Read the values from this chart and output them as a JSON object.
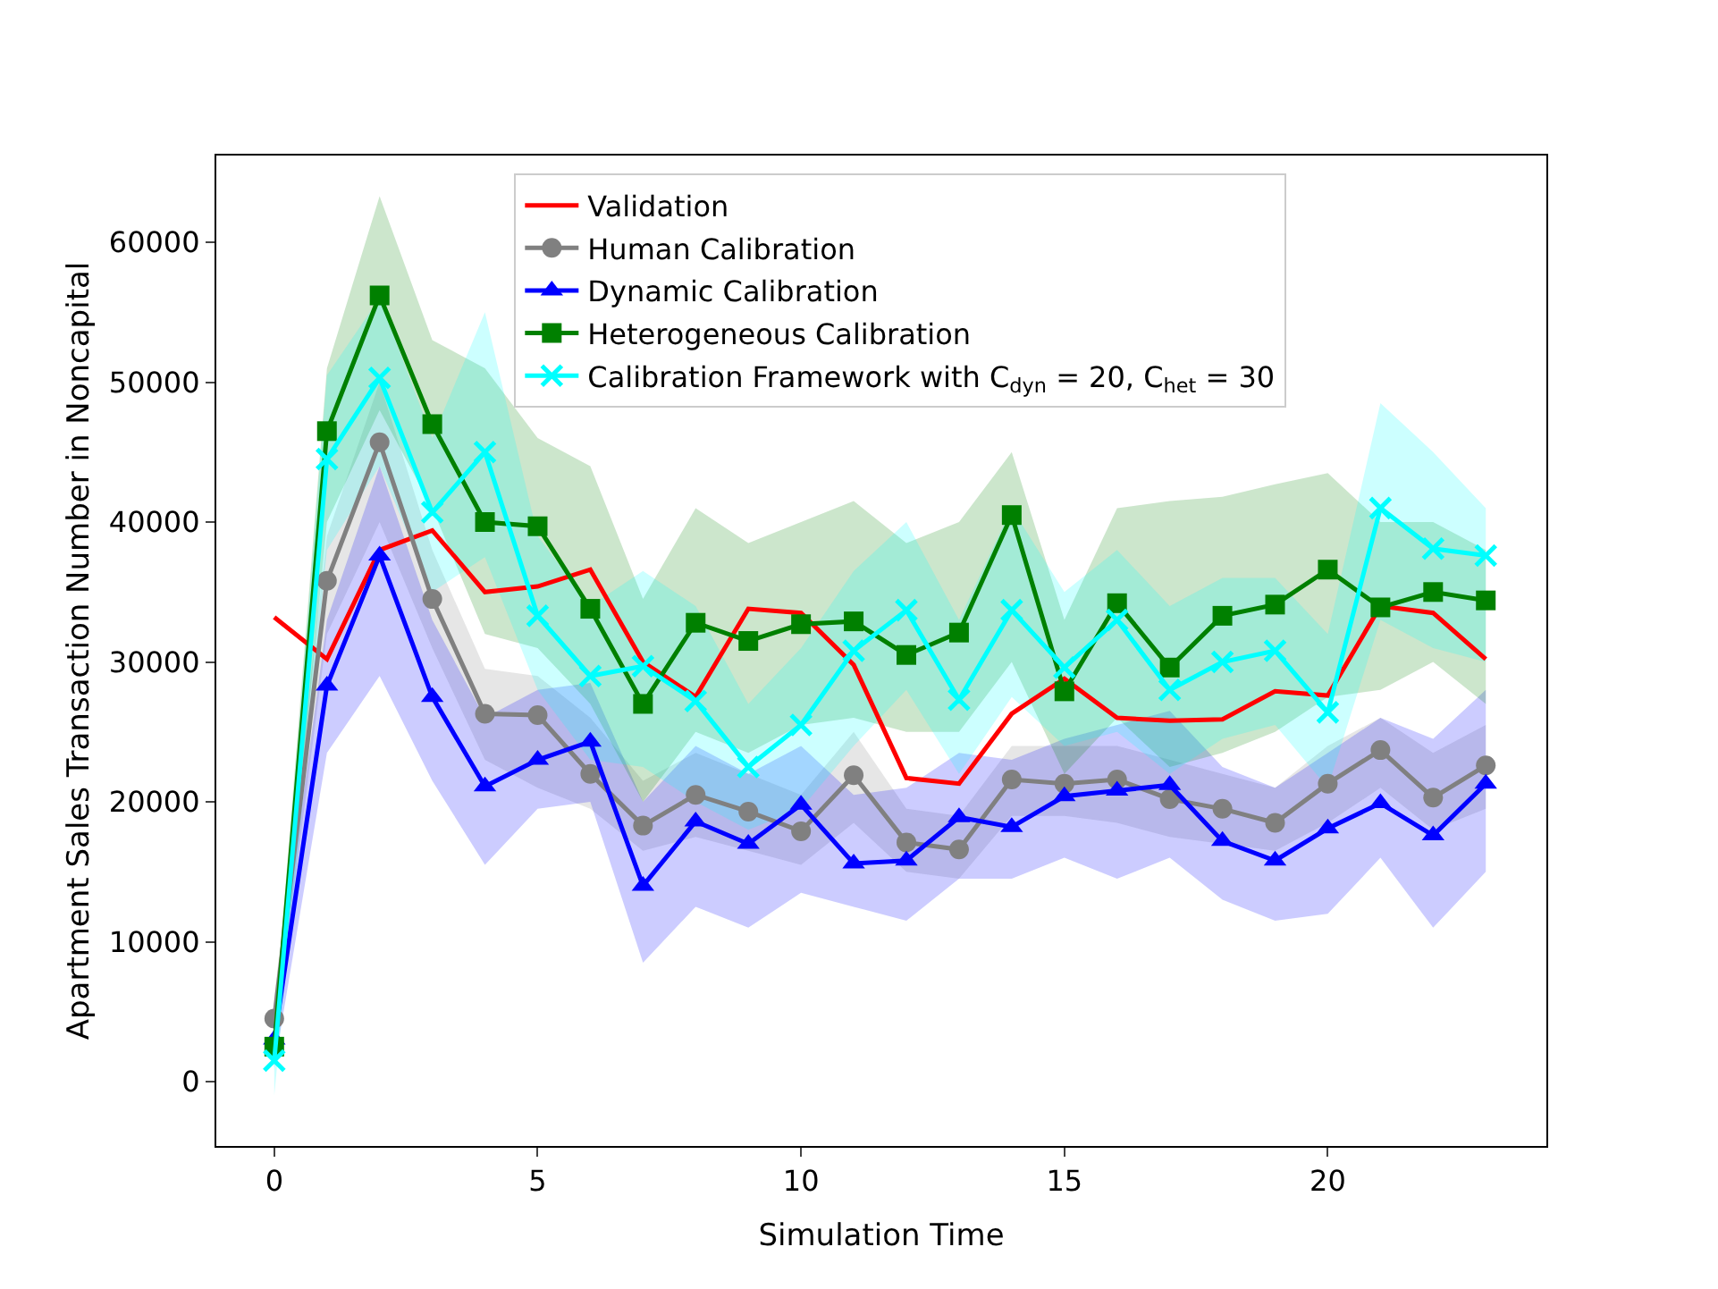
{
  "chart_data": {
    "type": "line",
    "xlabel": "Simulation Time",
    "ylabel": "Apartment Sales Transaction Number in Noncapital",
    "x": [
      0,
      1,
      2,
      3,
      4,
      5,
      6,
      7,
      8,
      9,
      10,
      11,
      12,
      13,
      14,
      15,
      16,
      17,
      18,
      19,
      20,
      21,
      22,
      23
    ],
    "xlim": [
      -1.1,
      24.15
    ],
    "xticks": [
      0,
      5,
      10,
      15,
      20
    ],
    "ylim": [
      -4600,
      66200
    ],
    "yticks": [
      0,
      10000,
      20000,
      30000,
      40000,
      50000,
      60000
    ],
    "legend": "top right",
    "line_style": "solid",
    "series": [
      {
        "name": "Validation",
        "color": "#ff0000",
        "marker": "none",
        "values": [
          33200,
          30200,
          38000,
          39400,
          35000,
          35400,
          36600,
          30000,
          27500,
          33800,
          33500,
          29800,
          21700,
          21300,
          26300,
          28800,
          26000,
          25800,
          25900,
          27900,
          27600,
          34000,
          33500,
          30200
        ]
      },
      {
        "name": "Human Calibration",
        "color": "#808080",
        "marker": "circle",
        "values": [
          4500,
          35800,
          45700,
          34500,
          26300,
          26200,
          22000,
          18300,
          20500,
          19300,
          17900,
          21900,
          17100,
          16600,
          21600,
          21300,
          21600,
          20200,
          19500,
          18500,
          21300,
          23700,
          20300,
          22600
        ],
        "lower": [
          3000,
          32000,
          40000,
          31000,
          23000,
          21000,
          19500,
          16500,
          17500,
          16500,
          15500,
          18500,
          15000,
          14500,
          19000,
          19000,
          18500,
          17500,
          17000,
          16500,
          18500,
          21000,
          18000,
          19500
        ],
        "upper": [
          6000,
          39000,
          50000,
          38000,
          29500,
          29000,
          26000,
          21500,
          23500,
          22000,
          20500,
          25000,
          19500,
          19000,
          24000,
          24000,
          24000,
          23000,
          22000,
          21000,
          24000,
          26000,
          23500,
          25500
        ]
      },
      {
        "name": "Dynamic Calibration",
        "color": "#0000ff",
        "marker": "triangle",
        "values": [
          3000,
          28300,
          37600,
          27500,
          21100,
          23000,
          24300,
          14000,
          18600,
          17000,
          19800,
          15600,
          15800,
          18900,
          18200,
          20400,
          20800,
          21200,
          17200,
          15800,
          18100,
          19900,
          17600,
          21300
        ],
        "lower": [
          1000,
          23500,
          29000,
          21500,
          15500,
          19500,
          20000,
          8500,
          12500,
          11000,
          13500,
          12500,
          11500,
          14500,
          14500,
          16000,
          14500,
          16000,
          13000,
          11500,
          12000,
          16000,
          11000,
          15000
        ],
        "upper": [
          5000,
          33000,
          44000,
          33000,
          26000,
          28000,
          28500,
          20000,
          24000,
          22000,
          24000,
          20500,
          21000,
          23500,
          23000,
          24500,
          25500,
          26500,
          22500,
          21000,
          23500,
          26000,
          24500,
          28000
        ]
      },
      {
        "name": "Heterogeneous Calibration",
        "color": "#008000",
        "marker": "square",
        "values": [
          2500,
          46500,
          56200,
          47000,
          40000,
          39700,
          33800,
          27000,
          32800,
          31500,
          32700,
          32900,
          30500,
          32100,
          40500,
          27900,
          34200,
          29600,
          33300,
          34100,
          36600,
          33900,
          35000,
          34400
        ],
        "lower": [
          1000,
          40000,
          48000,
          41000,
          32000,
          31000,
          27000,
          20000,
          25000,
          23500,
          25500,
          26000,
          25000,
          25000,
          30000,
          22000,
          26000,
          22500,
          23500,
          25000,
          27500,
          28000,
          30000,
          27000
        ],
        "upper": [
          4000,
          51000,
          63300,
          53000,
          51000,
          46000,
          44000,
          34500,
          41000,
          38500,
          40000,
          41500,
          38500,
          40000,
          45000,
          33000,
          41000,
          41500,
          41800,
          42700,
          43500,
          40000,
          40000,
          38000
        ]
      },
      {
        "name": "Calibration Framework with C$_{dyn}$ = 20, C$_{het}$ = 30",
        "color": "#00ffff",
        "marker": "cross",
        "values": [
          1500,
          44500,
          50300,
          40700,
          45000,
          33300,
          29000,
          29700,
          27200,
          22500,
          25500,
          30800,
          33700,
          27300,
          33700,
          29600,
          33000,
          28000,
          30000,
          30800,
          26400,
          41000,
          38100,
          37600
        ],
        "lower": [
          -1000,
          38000,
          44000,
          35000,
          37500,
          28000,
          23000,
          22500,
          20000,
          18000,
          19500,
          24000,
          28000,
          22000,
          27500,
          24000,
          25000,
          22000,
          24500,
          25500,
          21000,
          33000,
          31000,
          30000
        ],
        "upper": [
          3000,
          50500,
          56000,
          46000,
          55000,
          39000,
          34000,
          36500,
          34000,
          27000,
          31000,
          36500,
          40000,
          33000,
          41000,
          35000,
          38000,
          34000,
          36000,
          36000,
          32000,
          48500,
          45000,
          41000
        ]
      }
    ]
  }
}
